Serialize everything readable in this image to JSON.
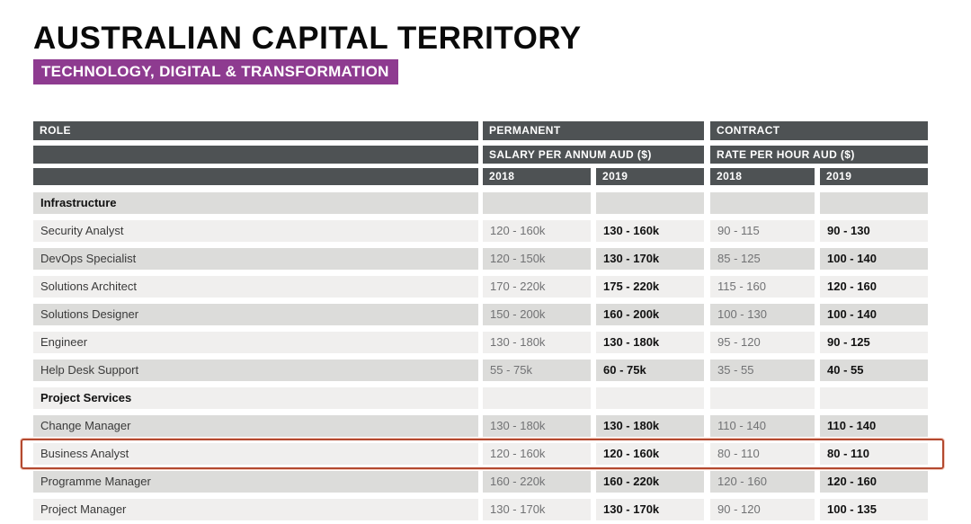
{
  "page": {
    "title": "AUSTRALIAN CAPITAL TERRITORY",
    "badge": "TECHNOLOGY, DIGITAL & TRANSFORMATION",
    "colors": {
      "badge_purple": "#8e3b90",
      "header_bar": "#4e5254",
      "row_dark": "#dcdcda",
      "row_light": "#f0efee",
      "highlight_red": "#b3492f"
    }
  },
  "table": {
    "header": {
      "role": "ROLE",
      "permanent": "PERMANENT",
      "contract": "CONTRACT",
      "permanent_sub": "SALARY PER ANNUM AUD ($)",
      "contract_sub": "RATE PER HOUR AUD ($)",
      "years": [
        "2018",
        "2019",
        "2018",
        "2019"
      ]
    },
    "sections": [
      {
        "name": "Infrastructure",
        "rows": [
          {
            "role": "Security Analyst",
            "perm_2018": "120 - 160k",
            "perm_2019": "130 - 160k",
            "con_2018": "90 - 115",
            "con_2019": "90 - 130",
            "highlighted": false
          },
          {
            "role": "DevOps Specialist",
            "perm_2018": "120 - 150k",
            "perm_2019": "130 - 170k",
            "con_2018": "85 - 125",
            "con_2019": "100 - 140",
            "highlighted": false
          },
          {
            "role": "Solutions Architect",
            "perm_2018": "170 - 220k",
            "perm_2019": "175 - 220k",
            "con_2018": "115 - 160",
            "con_2019": "120 - 160",
            "highlighted": false
          },
          {
            "role": "Solutions Designer",
            "perm_2018": "150 - 200k",
            "perm_2019": "160 - 200k",
            "con_2018": "100 - 130",
            "con_2019": "100 - 140",
            "highlighted": false
          },
          {
            "role": "Engineer",
            "perm_2018": "130 - 180k",
            "perm_2019": "130 - 180k",
            "con_2018": "95 - 120",
            "con_2019": "90 - 125",
            "highlighted": false
          },
          {
            "role": "Help Desk Support",
            "perm_2018": "55 - 75k",
            "perm_2019": "60 - 75k",
            "con_2018": "35 - 55",
            "con_2019": "40 - 55",
            "highlighted": false
          }
        ]
      },
      {
        "name": "Project Services",
        "rows": [
          {
            "role": "Change Manager",
            "perm_2018": "130 - 180k",
            "perm_2019": "130 - 180k",
            "con_2018": "110 - 140",
            "con_2019": "110 - 140",
            "highlighted": false
          },
          {
            "role": "Business Analyst",
            "perm_2018": "120 - 160k",
            "perm_2019": "120 - 160k",
            "con_2018": "80 - 110",
            "con_2019": "80 - 110",
            "highlighted": true
          },
          {
            "role": "Programme Manager",
            "perm_2018": "160 - 220k",
            "perm_2019": "160 - 220k",
            "con_2018": "120 - 160",
            "con_2019": "120 - 160",
            "highlighted": false
          },
          {
            "role": "Project Manager",
            "perm_2018": "130 - 170k",
            "perm_2019": "130 - 170k",
            "con_2018": "90 - 120",
            "con_2019": "100 - 135",
            "highlighted": false
          }
        ]
      }
    ]
  }
}
